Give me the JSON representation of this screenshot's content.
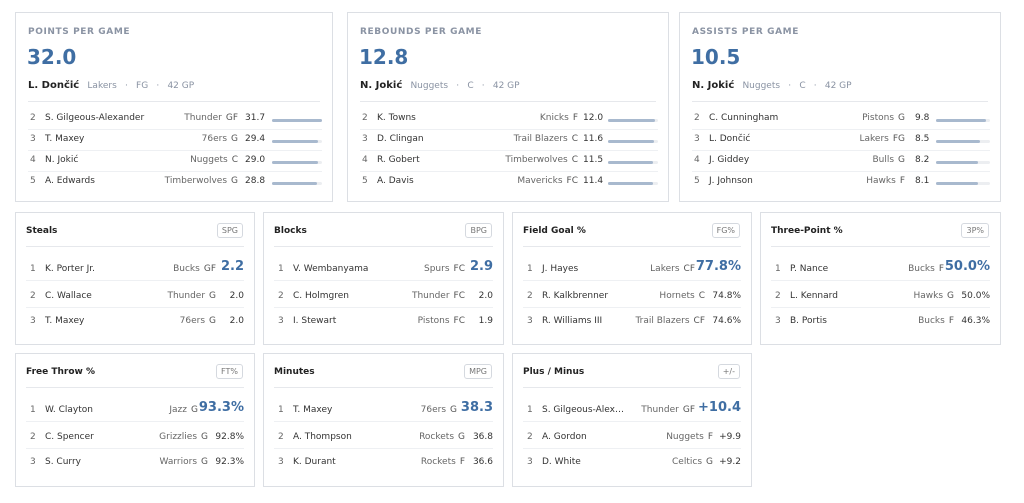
{
  "top_cards": [
    {
      "category": "POINTS PER GAME",
      "value": "32.0",
      "leader": {
        "name": "L. Dončić",
        "team": "Lakers",
        "pos": "FG",
        "gp": "42 GP"
      },
      "rows": [
        {
          "rank": "2",
          "name": "S. Gilgeous-Alexander",
          "team": "Thunder",
          "pos": "GF",
          "value": "31.7",
          "bar": 0.99
        },
        {
          "rank": "3",
          "name": "T. Maxey",
          "team": "76ers",
          "pos": "G",
          "value": "29.4",
          "bar": 0.92
        },
        {
          "rank": "4",
          "name": "N. Jokić",
          "team": "Nuggets",
          "pos": "C",
          "value": "29.0",
          "bar": 0.91
        },
        {
          "rank": "5",
          "name": "A. Edwards",
          "team": "Timberwolves",
          "pos": "G",
          "value": "28.8",
          "bar": 0.9
        }
      ]
    },
    {
      "category": "REBOUNDS PER GAME",
      "value": "12.8",
      "leader": {
        "name": "N. Jokić",
        "team": "Nuggets",
        "pos": "C",
        "gp": "42 GP"
      },
      "rows": [
        {
          "rank": "2",
          "name": "K. Towns",
          "team": "Knicks",
          "pos": "F",
          "value": "12.0",
          "bar": 0.94
        },
        {
          "rank": "3",
          "name": "D. Clingan",
          "team": "Trail Blazers",
          "pos": "C",
          "value": "11.6",
          "bar": 0.91
        },
        {
          "rank": "4",
          "name": "R. Gobert",
          "team": "Timberwolves",
          "pos": "C",
          "value": "11.5",
          "bar": 0.9
        },
        {
          "rank": "5",
          "name": "A. Davis",
          "team": "Mavericks",
          "pos": "FC",
          "value": "11.4",
          "bar": 0.89
        }
      ]
    },
    {
      "category": "ASSISTS PER GAME",
      "value": "10.5",
      "leader": {
        "name": "N. Jokić",
        "team": "Nuggets",
        "pos": "C",
        "gp": "42 GP"
      },
      "rows": [
        {
          "rank": "2",
          "name": "C. Cunningham",
          "team": "Pistons",
          "pos": "G",
          "value": "9.8",
          "bar": 0.93
        },
        {
          "rank": "3",
          "name": "L. Dončić",
          "team": "Lakers",
          "pos": "FG",
          "value": "8.5",
          "bar": 0.81
        },
        {
          "rank": "4",
          "name": "J. Giddey",
          "team": "Bulls",
          "pos": "G",
          "value": "8.2",
          "bar": 0.78
        },
        {
          "rank": "5",
          "name": "J. Johnson",
          "team": "Hawks",
          "pos": "F",
          "value": "8.1",
          "bar": 0.77
        }
      ]
    }
  ],
  "small_cards": [
    {
      "title": "Steals",
      "badge": "SPG",
      "rows": [
        {
          "rank": "1",
          "name": "K. Porter Jr.",
          "team": "Bucks",
          "pos": "GF",
          "value": "2.2"
        },
        {
          "rank": "2",
          "name": "C. Wallace",
          "team": "Thunder",
          "pos": "G",
          "value": "2.0"
        },
        {
          "rank": "3",
          "name": "T. Maxey",
          "team": "76ers",
          "pos": "G",
          "value": "2.0"
        }
      ]
    },
    {
      "title": "Blocks",
      "badge": "BPG",
      "rows": [
        {
          "rank": "1",
          "name": "V. Wembanyama",
          "team": "Spurs",
          "pos": "FC",
          "value": "2.9"
        },
        {
          "rank": "2",
          "name": "C. Holmgren",
          "team": "Thunder",
          "pos": "FC",
          "value": "2.0"
        },
        {
          "rank": "3",
          "name": "I. Stewart",
          "team": "Pistons",
          "pos": "FC",
          "value": "1.9"
        }
      ]
    },
    {
      "title": "Field Goal %",
      "badge": "FG%",
      "rows": [
        {
          "rank": "1",
          "name": "J. Hayes",
          "team": "Lakers",
          "pos": "CF",
          "value": "77.8%"
        },
        {
          "rank": "2",
          "name": "R. Kalkbrenner",
          "team": "Hornets",
          "pos": "C",
          "value": "74.8%"
        },
        {
          "rank": "3",
          "name": "R. Williams III",
          "team": "Trail Blazers",
          "pos": "CF",
          "value": "74.6%"
        }
      ]
    },
    {
      "title": "Three-Point %",
      "badge": "3P%",
      "rows": [
        {
          "rank": "1",
          "name": "P. Nance",
          "team": "Bucks",
          "pos": "F",
          "value": "50.0%"
        },
        {
          "rank": "2",
          "name": "L. Kennard",
          "team": "Hawks",
          "pos": "G",
          "value": "50.0%"
        },
        {
          "rank": "3",
          "name": "B. Portis",
          "team": "Bucks",
          "pos": "F",
          "value": "46.3%"
        }
      ]
    },
    {
      "title": "Free Throw %",
      "badge": "FT%",
      "rows": [
        {
          "rank": "1",
          "name": "W. Clayton",
          "team": "Jazz",
          "pos": "G",
          "value": "93.3%"
        },
        {
          "rank": "2",
          "name": "C. Spencer",
          "team": "Grizzlies",
          "pos": "G",
          "value": "92.8%"
        },
        {
          "rank": "3",
          "name": "S. Curry",
          "team": "Warriors",
          "pos": "G",
          "value": "92.3%"
        }
      ]
    },
    {
      "title": "Minutes",
      "badge": "MPG",
      "rows": [
        {
          "rank": "1",
          "name": "T. Maxey",
          "team": "76ers",
          "pos": "G",
          "value": "38.3"
        },
        {
          "rank": "2",
          "name": "A. Thompson",
          "team": "Rockets",
          "pos": "G",
          "value": "36.8"
        },
        {
          "rank": "3",
          "name": "K. Durant",
          "team": "Rockets",
          "pos": "F",
          "value": "36.6"
        }
      ]
    },
    {
      "title": "Plus / Minus",
      "badge": "+/-",
      "rows": [
        {
          "rank": "1",
          "name": "S. Gilgeous-Alex…",
          "team": "Thunder",
          "pos": "GF",
          "value": "+10.4"
        },
        {
          "rank": "2",
          "name": "A. Gordon",
          "team": "Nuggets",
          "pos": "F",
          "value": "+9.9"
        },
        {
          "rank": "3",
          "name": "D. White",
          "team": "Celtics",
          "pos": "G",
          "value": "+9.2"
        }
      ]
    }
  ]
}
